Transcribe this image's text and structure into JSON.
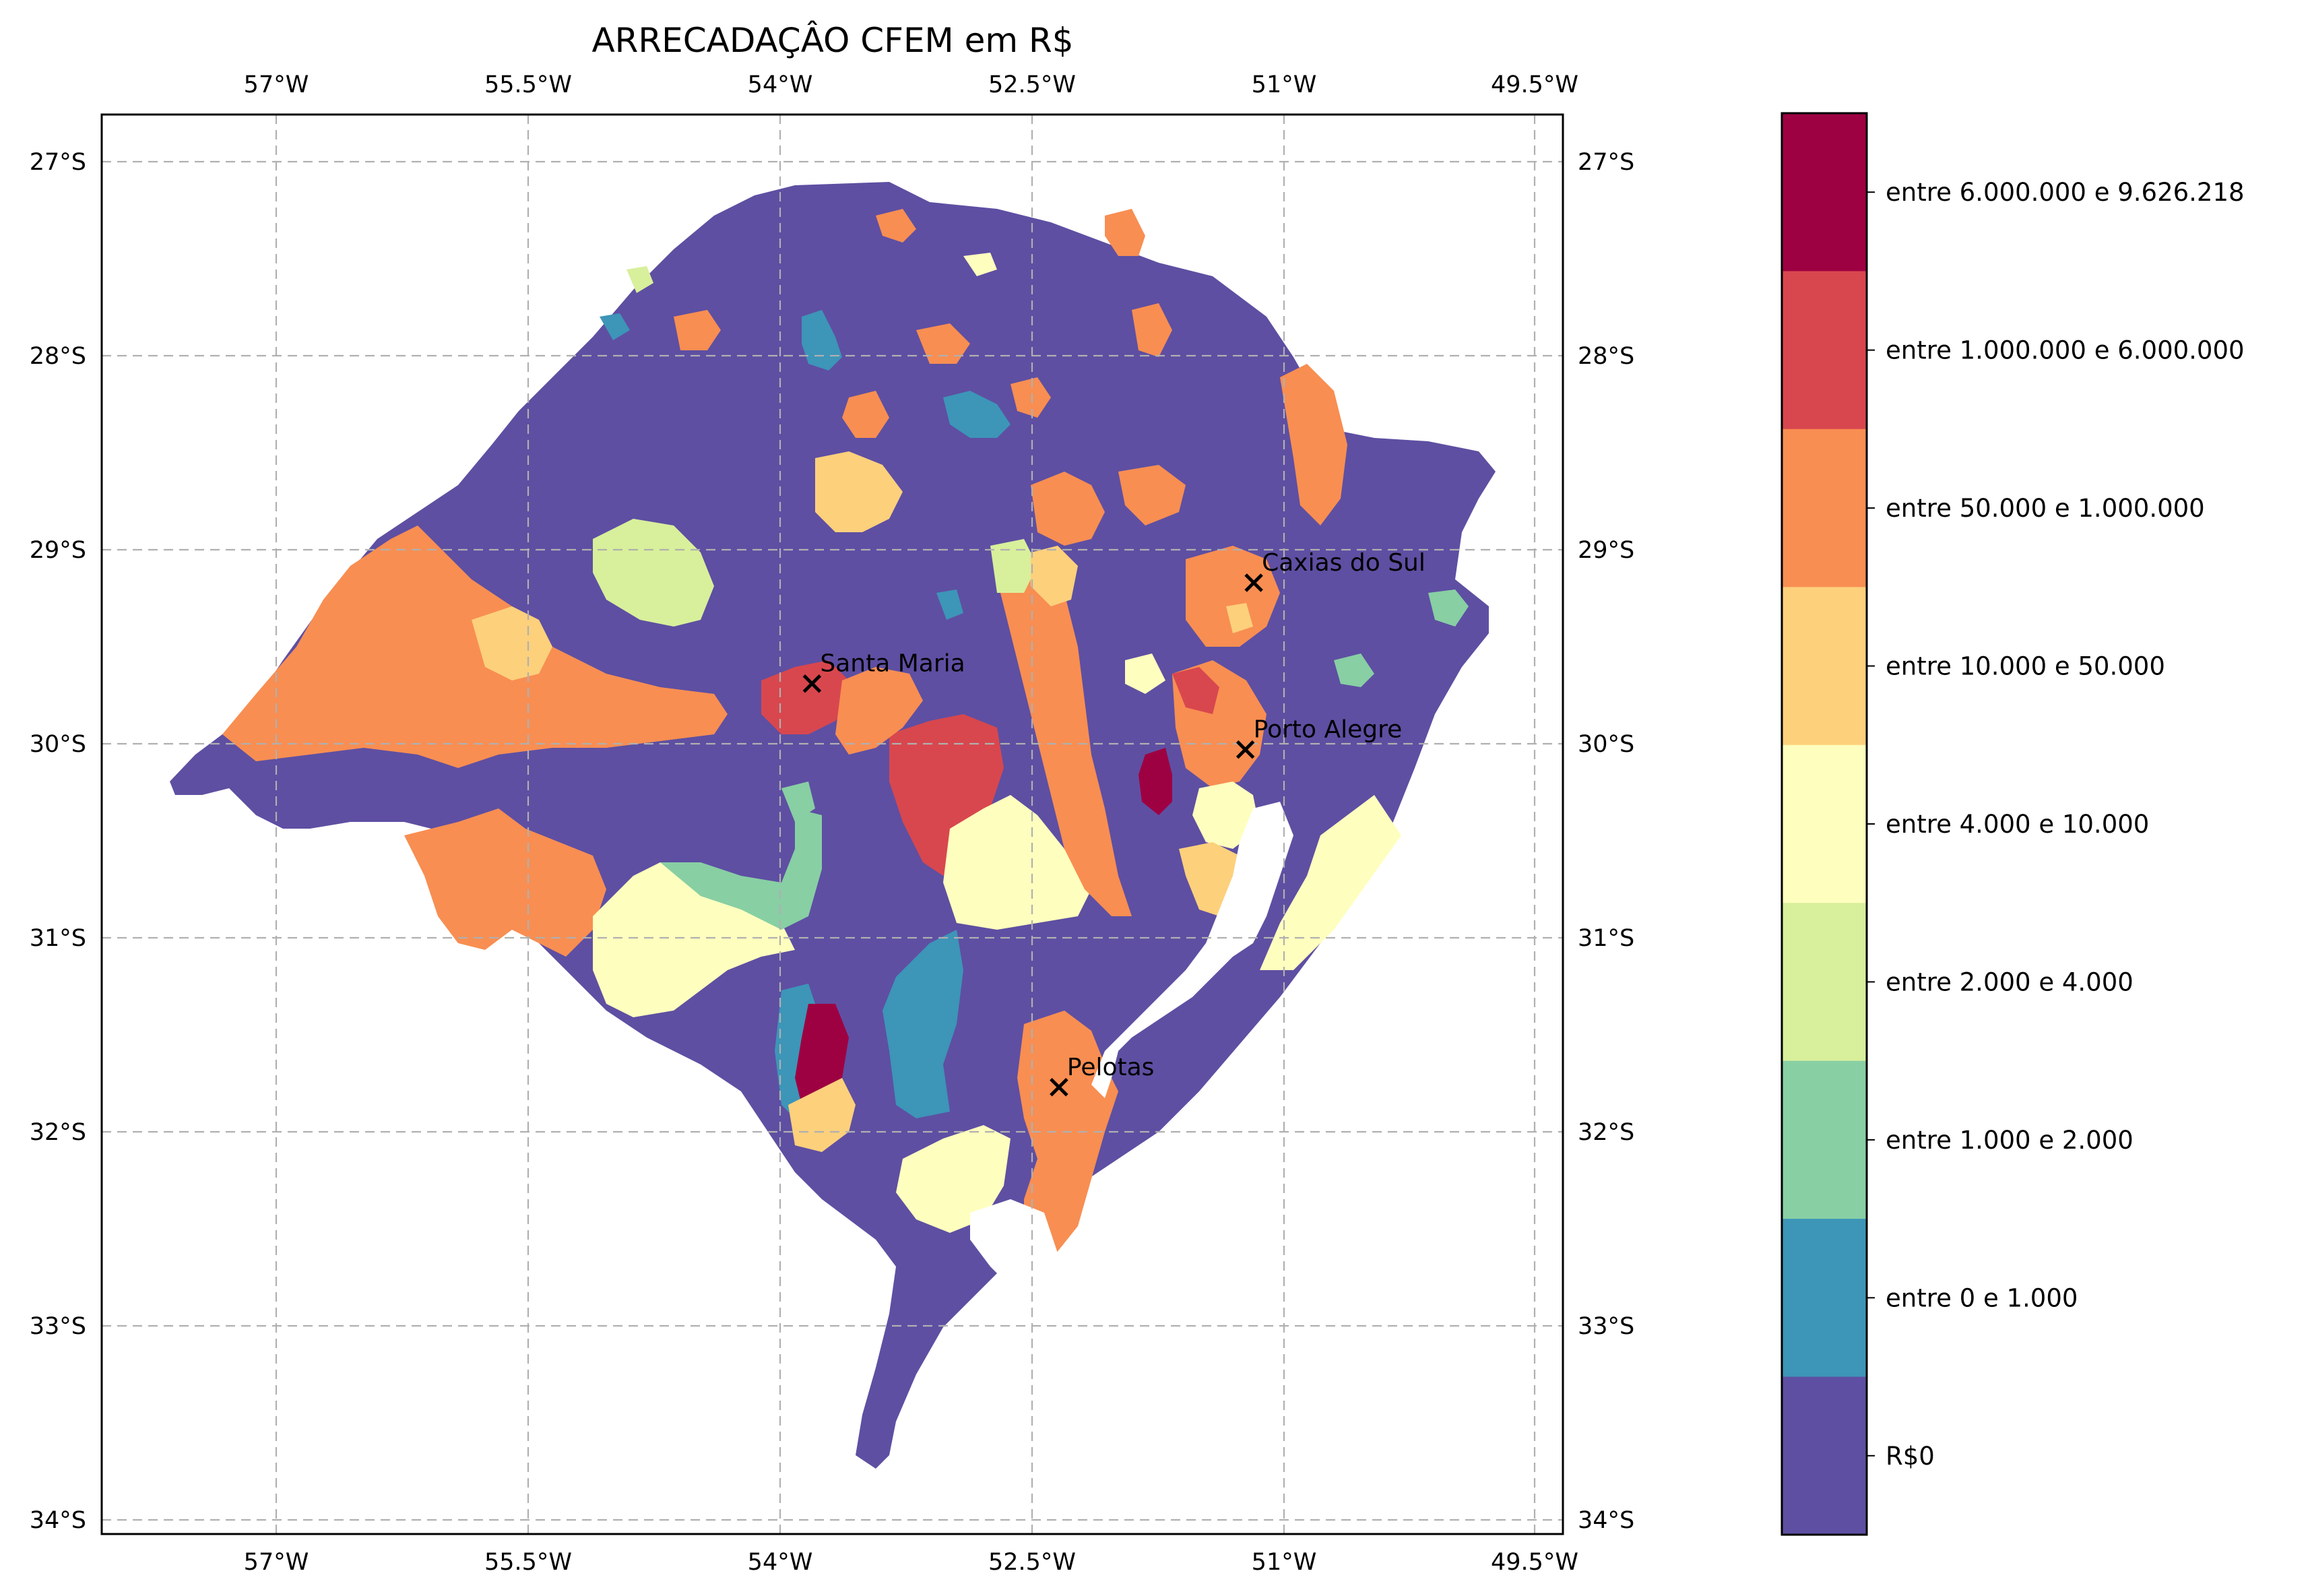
{
  "title": "ARRECADAÇÂO CFEM em R$",
  "axes": {
    "lon_ticks": [
      "57°W",
      "55.5°W",
      "54°W",
      "52.5°W",
      "51°W",
      "49.5°W"
    ],
    "lat_ticks": [
      "27°S",
      "28°S",
      "29°S",
      "30°S",
      "31°S",
      "32°S",
      "33°S",
      "34°S"
    ]
  },
  "cities": [
    {
      "name": "Caxias do Sul",
      "lon": -51.18,
      "lat": -29.17
    },
    {
      "name": "Santa Maria",
      "lon": -53.81,
      "lat": -29.69
    },
    {
      "name": "Porto Alegre",
      "lon": -51.23,
      "lat": -30.03
    },
    {
      "name": "Pelotas",
      "lon": -52.34,
      "lat": -31.77
    }
  ],
  "legend": {
    "classes": [
      {
        "label": "entre 6.000.000 e 9.626.218",
        "color": "#9e0142"
      },
      {
        "label": "entre 1.000.000 e 6.000.000",
        "color": "#d8474e"
      },
      {
        "label": "entre 50.000 e 1.000.000",
        "color": "#f88e52"
      },
      {
        "label": "entre 10.000 e 50.000",
        "color": "#fdd07c"
      },
      {
        "label": "entre 4.000 e 10.000",
        "color": "#feffbe"
      },
      {
        "label": "entre 2.000 e 4.000",
        "color": "#d8ef9b"
      },
      {
        "label": "entre 1.000 e 2.000",
        "color": "#88cfa4"
      },
      {
        "label": "entre 0 e 1.000",
        "color": "#3d95b8"
      },
      {
        "label": "R$0",
        "color": "#5e4fa2"
      }
    ]
  }
}
